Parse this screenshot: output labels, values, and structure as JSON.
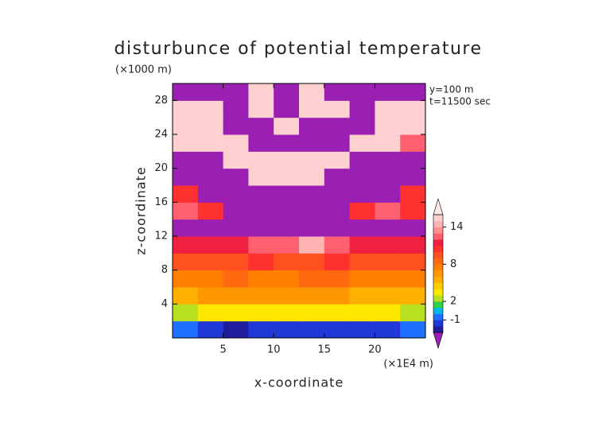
{
  "chart_data": {
    "type": "heatmap",
    "title": "disturbunce of potential temperature",
    "y_unit_label": "(×1000 m)",
    "x_unit_label": "(×1E4 m)",
    "xlabel": "x-coordinate",
    "ylabel": "z-coordinate",
    "annotations": [
      "y=100 m",
      "t=11500 sec"
    ],
    "xlim": [
      0,
      25
    ],
    "ylim": [
      0,
      30
    ],
    "xticks": [
      5,
      10,
      15,
      20
    ],
    "yticks": [
      4,
      8,
      12,
      16,
      20,
      24,
      28
    ],
    "x_bins": [
      0,
      2.5,
      5,
      7.5,
      10,
      12.5,
      15,
      17.5,
      20,
      22.5,
      25
    ],
    "y_bins": [
      0,
      2,
      4,
      6,
      8,
      10,
      12,
      14,
      16,
      18,
      20,
      22,
      24,
      26,
      28,
      30
    ],
    "values": [
      [
        -1,
        -2,
        -3,
        -2,
        -2,
        -2,
        -2,
        -2,
        -2,
        -1
      ],
      [
        2,
        3,
        3,
        3,
        3,
        3,
        3,
        3,
        3,
        2
      ],
      [
        5,
        6,
        6,
        6,
        6,
        6,
        6,
        5,
        5,
        5
      ],
      [
        7,
        7,
        8,
        7,
        7,
        8,
        8,
        7,
        7,
        7
      ],
      [
        9,
        9,
        9,
        10,
        9,
        9,
        10,
        9,
        9,
        9
      ],
      [
        11,
        11,
        11,
        12,
        12,
        14,
        12,
        11,
        11,
        11
      ],
      [
        -5,
        -5,
        -5,
        -5,
        -5,
        -5,
        -5,
        -5,
        -5,
        -5
      ],
      [
        12,
        10,
        -5,
        -5,
        -5,
        -5,
        -5,
        10,
        12,
        10
      ],
      [
        10,
        -5,
        -5,
        -5,
        -5,
        -5,
        -5,
        -5,
        -5,
        10
      ],
      [
        -5,
        -5,
        -5,
        15,
        15,
        15,
        -5,
        -5,
        -5,
        -5
      ],
      [
        -5,
        -5,
        15,
        15,
        15,
        15,
        15,
        -5,
        -5,
        -5
      ],
      [
        15,
        15,
        15,
        -5,
        -5,
        -5,
        -5,
        15,
        15,
        12
      ],
      [
        15,
        15,
        -5,
        -5,
        15,
        -5,
        -5,
        -5,
        15,
        15
      ],
      [
        15,
        15,
        -5,
        15,
        -5,
        15,
        15,
        -5,
        15,
        15
      ],
      [
        -5,
        -5,
        -5,
        15,
        -5,
        15,
        -5,
        -5,
        -5,
        -5
      ]
    ],
    "colorbar": {
      "levels": [
        -3,
        -2,
        -1,
        0,
        1,
        2,
        3,
        4,
        5,
        6,
        7,
        8,
        9,
        10,
        11,
        12,
        13,
        14,
        15,
        16
      ],
      "colors": [
        "#9a20b4",
        "#1e1e9c",
        "#2038d8",
        "#2070ff",
        "#00b8e8",
        "#30d048",
        "#b8e020",
        "#ffe800",
        "#ffcc00",
        "#ffb000",
        "#ff9800",
        "#ff8000",
        "#ff6a10",
        "#ff5020",
        "#ff3030",
        "#f02040",
        "#ff6070",
        "#ff9090",
        "#ffb4b4",
        "#ffd0d0",
        "#ffe8e8"
      ],
      "ticks": [
        -1,
        2,
        8,
        14
      ]
    }
  }
}
